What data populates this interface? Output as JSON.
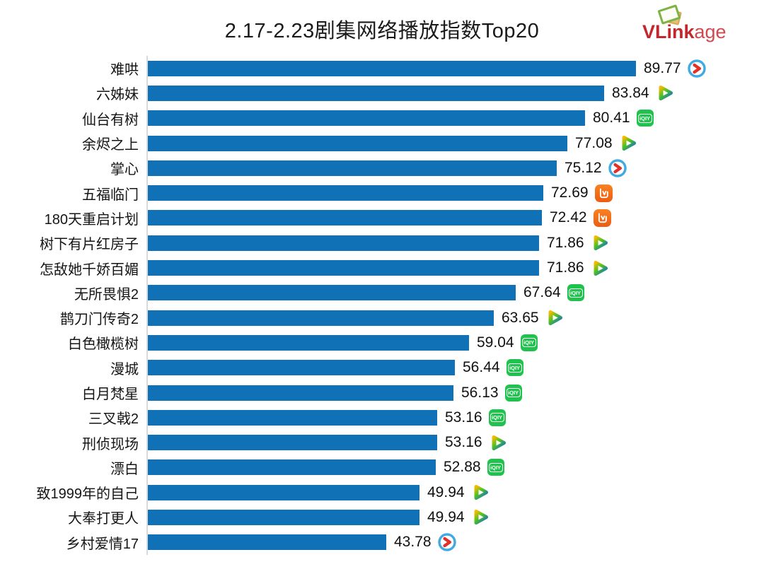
{
  "title": "2.17-2.23剧集网络播放指数Top20",
  "logo": {
    "name": "VLinkage",
    "text_bold": "VLink",
    "text_light": "age"
  },
  "colors": {
    "bar_blue": "#1171b7",
    "axis_gray": "#d9d9d9",
    "logo_red_bold": "#c1272d",
    "logo_red_light": "#cf4a4e",
    "iqiyi_green": "#1fc24d",
    "mgtv_orange": "#ec5d13",
    "youku_ring_blue": "#41aae1",
    "youku_arrow_red": "#e0312b",
    "tencent_yellow": "#f8ba00",
    "tencent_green": "#4fc31e",
    "tencent_blue": "#1272c6"
  },
  "chart_data": {
    "type": "bar",
    "orientation": "horizontal",
    "title": "2.17-2.23剧集网络播放指数Top20",
    "xlabel": "",
    "ylabel": "",
    "value_range": [
      0,
      91.8
    ],
    "grid": false,
    "legend": "none",
    "bar_color": "#1171b7",
    "value_label_decimals": 2,
    "items": [
      {
        "rank": 1,
        "label": "难哄",
        "value": 89.77,
        "platform": "youku"
      },
      {
        "rank": 2,
        "label": "六姊妹",
        "value": 83.84,
        "platform": "tencent"
      },
      {
        "rank": 3,
        "label": "仙台有树",
        "value": 80.41,
        "platform": "iqiyi"
      },
      {
        "rank": 4,
        "label": "余烬之上",
        "value": 77.08,
        "platform": "tencent"
      },
      {
        "rank": 5,
        "label": "掌心",
        "value": 75.12,
        "platform": "youku"
      },
      {
        "rank": 6,
        "label": "五福临门",
        "value": 72.69,
        "platform": "mgtv"
      },
      {
        "rank": 7,
        "label": "180天重启计划",
        "value": 72.42,
        "platform": "mgtv"
      },
      {
        "rank": 8,
        "label": "树下有片红房子",
        "value": 71.86,
        "platform": "tencent"
      },
      {
        "rank": 9,
        "label": "怎敌她千娇百媚",
        "value": 71.86,
        "platform": "tencent"
      },
      {
        "rank": 10,
        "label": "无所畏惧2",
        "value": 67.64,
        "platform": "iqiyi"
      },
      {
        "rank": 11,
        "label": "鹊刀门传奇2",
        "value": 63.65,
        "platform": "tencent"
      },
      {
        "rank": 12,
        "label": "白色橄榄树",
        "value": 59.04,
        "platform": "iqiyi"
      },
      {
        "rank": 13,
        "label": "漫城",
        "value": 56.44,
        "platform": "iqiyi"
      },
      {
        "rank": 14,
        "label": "白月梵星",
        "value": 56.13,
        "platform": "iqiyi"
      },
      {
        "rank": 15,
        "label": "三叉戟2",
        "value": 53.16,
        "platform": "iqiyi"
      },
      {
        "rank": 16,
        "label": "刑侦现场",
        "value": 53.16,
        "platform": "tencent"
      },
      {
        "rank": 17,
        "label": "漂白",
        "value": 52.88,
        "platform": "iqiyi"
      },
      {
        "rank": 18,
        "label": "致1999年的自己",
        "value": 49.94,
        "platform": "tencent"
      },
      {
        "rank": 19,
        "label": "大奉打更人",
        "value": 49.94,
        "platform": "tencent"
      },
      {
        "rank": 20,
        "label": "乡村爱情17",
        "value": 43.78,
        "platform": "youku"
      }
    ],
    "iqiyi_icon_text": "iQIY"
  }
}
